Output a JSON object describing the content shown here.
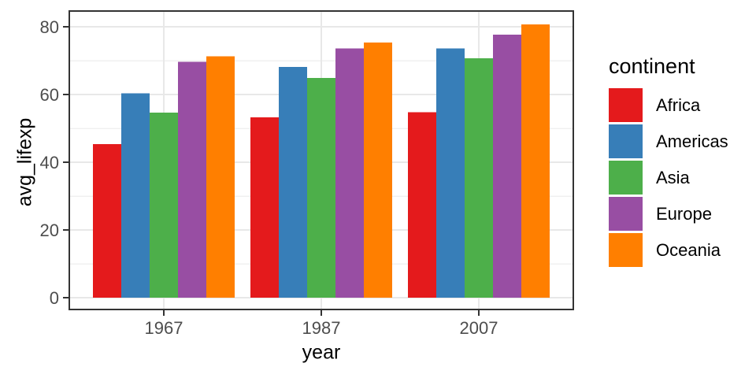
{
  "figure": {
    "background": "#FFFFFF"
  },
  "chart_data": {
    "type": "bar",
    "title": "",
    "xlabel": "year",
    "ylabel": "avg_lifexp",
    "legend_title": "continent",
    "legend_position": "right",
    "grid": true,
    "categories": [
      "1967",
      "1987",
      "2007"
    ],
    "series": [
      {
        "name": "Africa",
        "color": "#E41A1C",
        "values": [
          45.3,
          53.3,
          54.8
        ]
      },
      {
        "name": "Americas",
        "color": "#377EB8",
        "values": [
          60.4,
          68.1,
          73.6
        ]
      },
      {
        "name": "Asia",
        "color": "#4DAF4A",
        "values": [
          54.7,
          64.9,
          70.7
        ]
      },
      {
        "name": "Europe",
        "color": "#984EA3",
        "values": [
          69.7,
          73.6,
          77.7
        ]
      },
      {
        "name": "Oceania",
        "color": "#FF7F00",
        "values": [
          71.3,
          75.3,
          80.7
        ]
      }
    ],
    "ylim": [
      0,
      80
    ],
    "y_major_ticks": [
      0,
      20,
      40,
      60,
      80
    ],
    "y_minor_ticks": [
      10,
      30,
      50,
      70
    ],
    "style": {
      "grid_major_color": "#E8E8E8",
      "grid_minor_color": "#F0F0F0",
      "panel_border_color": "#333333",
      "tick_mark_color": "#333333",
      "tick_label_color": "#4D4D4D",
      "axis_title_color": "#000000"
    }
  }
}
